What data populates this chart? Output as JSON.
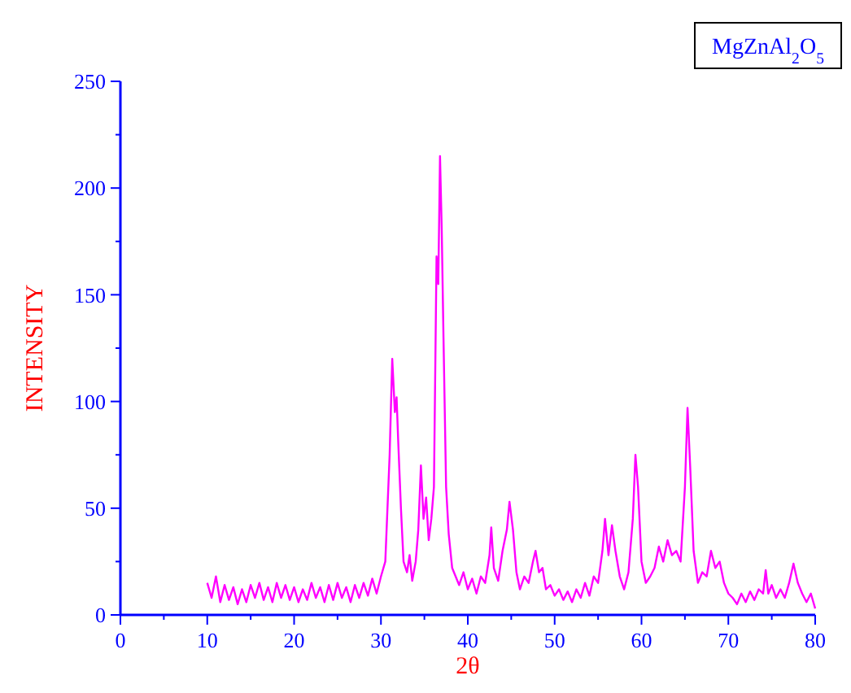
{
  "chart_data": {
    "type": "line",
    "xlabel": "2θ",
    "ylabel": "INTENSITY",
    "annotations": [
      "MgZnAl$_{2}$O$_{5}$"
    ],
    "xlim": [
      0,
      80
    ],
    "ylim": [
      0,
      250
    ],
    "xticks": [
      0,
      {
        "value": 5,
        "label": null
      },
      10,
      {
        "value": 15,
        "label": null
      },
      20,
      {
        "value": 25,
        "label": null
      },
      30,
      {
        "value": 35,
        "label": null
      },
      40,
      {
        "value": 45,
        "label": null
      },
      50,
      {
        "value": 55,
        "label": null
      },
      60,
      {
        "value": 65,
        "label": null
      },
      70,
      {
        "value": 75,
        "label": null
      },
      80
    ],
    "yticks": [
      0,
      {
        "value": 25,
        "label": null
      },
      50,
      {
        "value": 75,
        "label": null
      },
      100,
      {
        "value": 125,
        "label": null
      },
      150,
      {
        "value": 175,
        "label": null
      },
      200,
      {
        "value": 225,
        "label": null
      },
      250
    ],
    "grid": false,
    "marker": "none",
    "line_style": "solid",
    "series": [
      {
        "color": "#ff00ff",
        "x": [
          10,
          10.5,
          11,
          11.5,
          12,
          12.5,
          13,
          13.5,
          14,
          14.5,
          15,
          15.5,
          16,
          16.5,
          17,
          17.5,
          18,
          18.5,
          19,
          19.5,
          20,
          20.5,
          21,
          21.5,
          22,
          22.5,
          23,
          23.5,
          24,
          24.5,
          25,
          25.5,
          26,
          26.5,
          27,
          27.5,
          28,
          28.5,
          29,
          29.5,
          30,
          30.5,
          31,
          31.3,
          31.6,
          31.8,
          32,
          32.3,
          32.6,
          33,
          33.3,
          33.6,
          34,
          34.3,
          34.6,
          34.9,
          35.2,
          35.5,
          35.8,
          36.1,
          36.4,
          36.6,
          36.8,
          37,
          37.2,
          37.5,
          37.8,
          38.2,
          38.6,
          39,
          39.5,
          40,
          40.5,
          41,
          41.5,
          42,
          42.5,
          42.7,
          43,
          43.5,
          44,
          44.5,
          44.8,
          45.2,
          45.6,
          46,
          46.5,
          47,
          47.5,
          47.8,
          48.2,
          48.6,
          49,
          49.5,
          50,
          50.5,
          51,
          51.5,
          52,
          52.5,
          53,
          53.5,
          54,
          54.5,
          55,
          55.5,
          55.8,
          56.2,
          56.6,
          57,
          57.5,
          58,
          58.5,
          59,
          59.3,
          59.6,
          60,
          60.5,
          61,
          61.5,
          62,
          62.5,
          63,
          63.5,
          64,
          64.5,
          65,
          65.3,
          65.6,
          66,
          66.5,
          67,
          67.5,
          68,
          68.5,
          69,
          69.5,
          70,
          70.5,
          71,
          71.5,
          72,
          72.5,
          73,
          73.5,
          74,
          74.3,
          74.6,
          75,
          75.5,
          76,
          76.5,
          77,
          77.5,
          78,
          78.5,
          79,
          79.5,
          80
        ],
        "values": [
          15,
          8,
          18,
          6,
          14,
          7,
          13,
          5,
          12,
          6,
          14,
          8,
          15,
          7,
          13,
          6,
          15,
          8,
          14,
          7,
          13,
          6,
          12,
          7,
          15,
          8,
          13,
          6,
          14,
          7,
          15,
          8,
          13,
          6,
          14,
          8,
          15,
          9,
          17,
          10,
          18,
          25,
          75,
          120,
          95,
          102,
          80,
          50,
          25,
          20,
          28,
          16,
          25,
          40,
          70,
          45,
          55,
          35,
          45,
          60,
          168,
          155,
          215,
          180,
          130,
          60,
          38,
          22,
          18,
          14,
          20,
          12,
          17,
          10,
          18,
          15,
          28,
          41,
          22,
          16,
          30,
          40,
          53,
          40,
          20,
          12,
          18,
          15,
          25,
          30,
          20,
          22,
          12,
          14,
          9,
          12,
          7,
          11,
          6,
          12,
          8,
          15,
          9,
          18,
          15,
          30,
          45,
          28,
          42,
          30,
          18,
          12,
          20,
          45,
          75,
          60,
          25,
          15,
          18,
          22,
          32,
          25,
          35,
          28,
          30,
          25,
          60,
          97,
          70,
          30,
          15,
          20,
          18,
          30,
          22,
          25,
          15,
          10,
          8,
          5,
          10,
          6,
          11,
          7,
          12,
          10,
          21,
          10,
          14,
          8,
          12,
          8,
          15,
          24,
          15,
          10,
          6,
          10,
          3
        ]
      }
    ]
  }
}
